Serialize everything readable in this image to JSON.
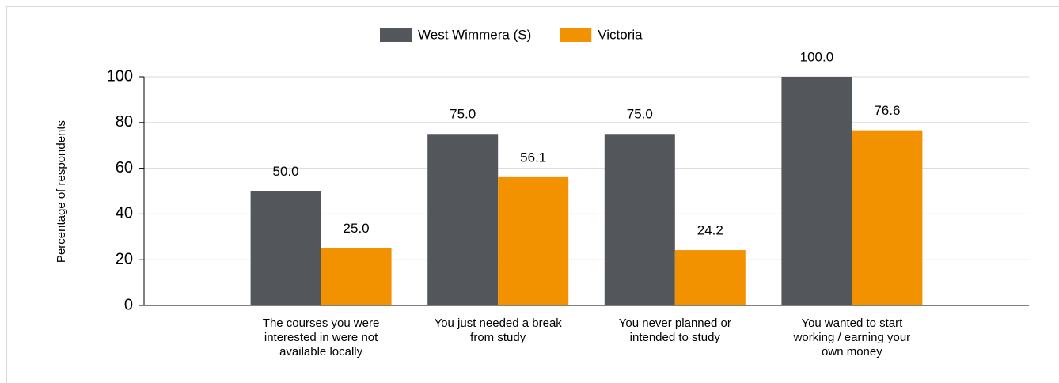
{
  "chart_data": {
    "type": "bar",
    "y_label": "Percentage of respondents",
    "categories": [
      "The courses you were interested in were not available locally",
      "You just needed a break from study",
      "You never planned or intended to study",
      "You wanted to start working / earning your own money"
    ],
    "series": [
      {
        "name": "West Wimmera (S)",
        "color": "#53565a",
        "values": [
          50,
          75,
          75,
          100
        ],
        "value_labels": [
          "50.0",
          "75.0",
          "75.0",
          "100.0"
        ]
      },
      {
        "name": "Victoria",
        "color": "#f39200",
        "values": [
          25,
          56.1,
          24.2,
          76.6
        ],
        "value_labels": [
          "25.0",
          "56.1",
          "24.2",
          "76.6"
        ]
      }
    ],
    "ylim": [
      0,
      100
    ],
    "yticks": [
      0,
      20,
      40,
      60,
      80,
      100
    ],
    "grid": true,
    "legend": "top"
  }
}
